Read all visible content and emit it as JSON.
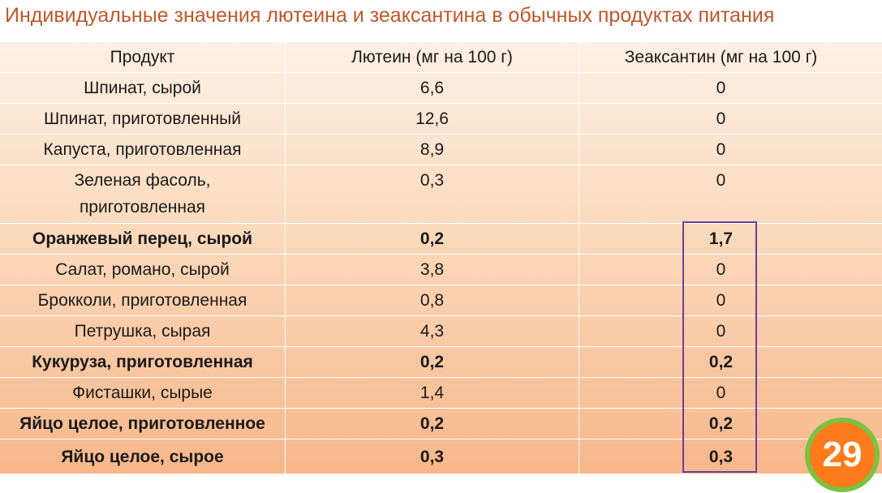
{
  "title": "Индивидуальные значения лютеина и зеаксантина в обычных продуктах питания",
  "table": {
    "headers": [
      "Продукт",
      "Лютеин (мг на 100 г)",
      "Зеаксантин (мг на 100 г)"
    ],
    "rows": [
      {
        "product": "Шпинат, сырой",
        "lutein": "6,6",
        "zeaxanthin": "0",
        "bold": false
      },
      {
        "product": "Шпинат, приготовленный",
        "lutein": "12,6",
        "zeaxanthin": "0",
        "bold": false
      },
      {
        "product": "Капуста, приготовленная",
        "lutein": "8,9",
        "zeaxanthin": "0",
        "bold": false
      },
      {
        "product": "Зеленая фасоль,\nприготовленная",
        "lutein": "0,3",
        "zeaxanthin": "0",
        "bold": false
      },
      {
        "product": "Оранжевый перец, сырой",
        "lutein": "0,2",
        "zeaxanthin": "1,7",
        "bold": true
      },
      {
        "product": "Салат, романо, сырой",
        "lutein": "3,8",
        "zeaxanthin": "0",
        "bold": false
      },
      {
        "product": "Брокколи, приготовленная",
        "lutein": "0,8",
        "zeaxanthin": "0",
        "bold": false
      },
      {
        "product": "Петрушка, сырая",
        "lutein": "4,3",
        "zeaxanthin": "0",
        "bold": false
      },
      {
        "product": "Кукуруза, приготовленная",
        "lutein": "0,2",
        "zeaxanthin": "0,2",
        "bold": true
      },
      {
        "product": "Фисташки, сырые",
        "lutein": "1,4",
        "zeaxanthin": "0",
        "bold": false
      },
      {
        "product": "Яйцо целое, приготовленное",
        "lutein": "0,2",
        "zeaxanthin": "0,2",
        "bold": true
      },
      {
        "product": "Яйцо целое, сырое",
        "lutein": "0,3",
        "zeaxanthin": "0,3",
        "bold": true
      }
    ]
  },
  "badge": {
    "number": "29",
    "color": "#ff7a1a",
    "ring_color": "#7cc241"
  },
  "colors": {
    "title": "#c0572a",
    "highlight_border": "#6a3fa0"
  }
}
